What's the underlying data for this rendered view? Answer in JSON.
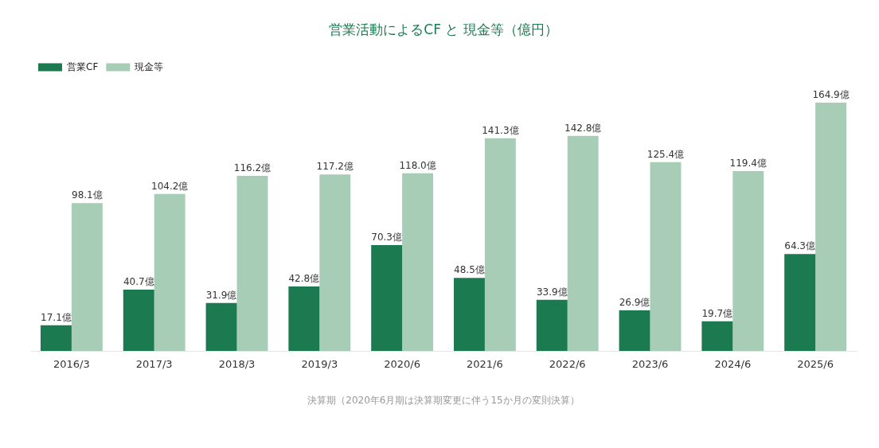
{
  "chart_data": {
    "type": "bar",
    "title": "営業活動によるCF と 現金等（億円）",
    "xlabel": "決算期（2020年6月期は決算期変更に伴う15か月の変則決算）",
    "categories": [
      "2016/3",
      "2017/3",
      "2018/3",
      "2019/3",
      "2020/6",
      "2021/6",
      "2022/6",
      "2023/6",
      "2024/6",
      "2025/6"
    ],
    "series": [
      {
        "name": "営業CF",
        "color": "#1b7a50",
        "values": [
          17.1,
          40.7,
          31.9,
          42.8,
          70.3,
          48.5,
          33.9,
          26.9,
          19.7,
          64.3
        ],
        "value_labels": [
          "17.1億",
          "40.7億",
          "31.9億",
          "42.8億",
          "70.3億",
          "48.5億",
          "33.9億",
          "26.9億",
          "19.7億",
          "64.3億"
        ]
      },
      {
        "name": "現金等",
        "color": "#a8cdb6",
        "values": [
          98.1,
          104.2,
          116.2,
          117.2,
          118.0,
          141.3,
          142.8,
          125.4,
          119.4,
          164.9
        ],
        "value_labels": [
          "98.1億",
          "104.2億",
          "116.2億",
          "117.2億",
          "118.0億",
          "141.3億",
          "142.8億",
          "125.4億",
          "119.4億",
          "164.9億"
        ]
      }
    ],
    "legend": "top left",
    "grid": false,
    "tick_labels": "x"
  }
}
